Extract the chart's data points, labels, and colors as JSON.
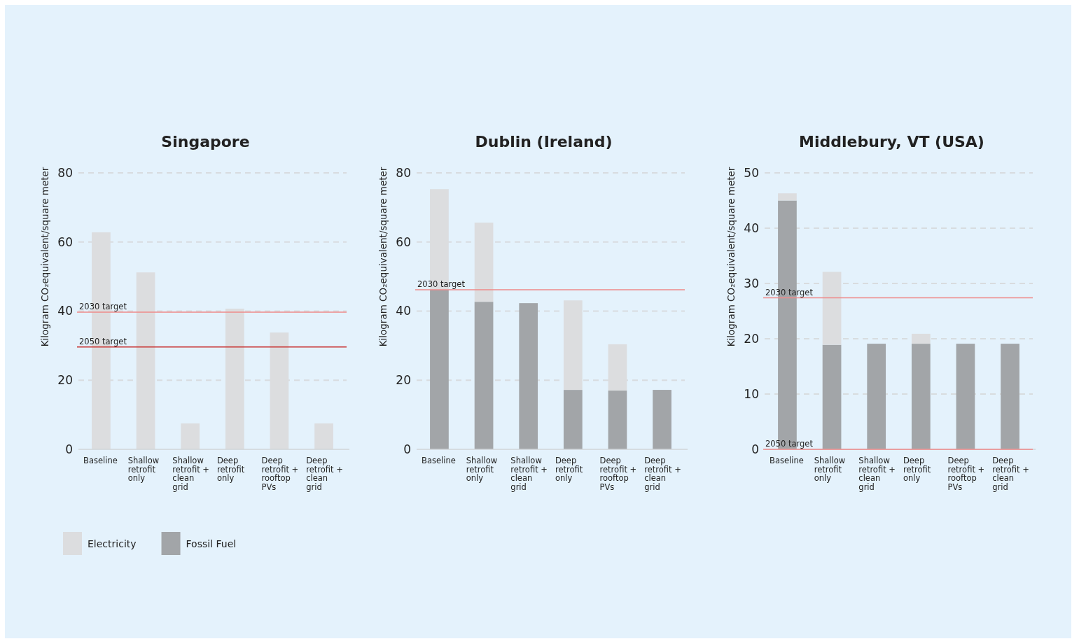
{
  "chart_data": [
    {
      "type": "bar",
      "title": "Singapore",
      "ylabel": "Kilogram CO₂equivalent/square meter",
      "stacked": true,
      "grid": "y",
      "legend": "bottom left",
      "categories": [
        "Baseline",
        "Shallow retrofit only",
        "Shallow retrofit + clean grid",
        "Deep retrofit only",
        "Deep retrofit + rooftop PVs",
        "Deep retrofit + clean grid"
      ],
      "ylim": [
        0,
        80
      ],
      "yticks": [
        0,
        20,
        40,
        60,
        80
      ],
      "series": [
        {
          "name": "Fossil Fuel",
          "color": "#a2a5a8",
          "values": [
            0,
            0,
            0,
            0,
            0,
            0
          ]
        },
        {
          "name": "Electricity",
          "color": "#dcdddf",
          "values": [
            62.8,
            51.2,
            7.5,
            40.7,
            33.8,
            7.5
          ]
        }
      ],
      "ref_lines": [
        {
          "axis": "y",
          "value": 39.7,
          "label": "2030 target",
          "color": "#ef8a8a"
        },
        {
          "axis": "y",
          "value": 29.6,
          "label": "2050 target",
          "color": "#c8302f"
        }
      ]
    },
    {
      "type": "bar",
      "title": "Dublin (Ireland)",
      "ylabel": "Kilogram CO₂equivalent/square meter",
      "stacked": true,
      "grid": "y",
      "categories": [
        "Baseline",
        "Shallow retrofit only",
        "Shallow retrofit + clean grid",
        "Deep retrofit only",
        "Deep retrofit + rooftop PVs",
        "Deep retrofit + clean grid"
      ],
      "ylim": [
        0,
        80
      ],
      "yticks": [
        0,
        20,
        40,
        60,
        80
      ],
      "series": [
        {
          "color": "#a2a5a8",
          "values": [
            46.2,
            42.7,
            42.3,
            17.2,
            17.0,
            17.2
          ]
        },
        {
          "color": "#dcdddf",
          "values": [
            29.1,
            22.9,
            0,
            25.9,
            13.4,
            0
          ]
        }
      ],
      "ref_lines": [
        {
          "axis": "y",
          "value": 46.2,
          "label": "2030 target",
          "color": "#ef8a8a"
        }
      ]
    },
    {
      "type": "bar",
      "title": "Middlebury, VT (USA)",
      "ylabel": "Kilogram CO₂equivalent/square meter",
      "stacked": true,
      "grid": "y",
      "categories": [
        "Baseline",
        "Shallow retrofit only",
        "Shallow retrofit + clean grid",
        "Deep retrofit only",
        "Deep retrofit + rooftop PVs",
        "Deep retrofit + clean grid"
      ],
      "ylim": [
        0,
        50
      ],
      "yticks": [
        0,
        10,
        20,
        30,
        40,
        50
      ],
      "series": [
        {
          "color": "#a2a5a8",
          "values": [
            45.0,
            18.9,
            19.1,
            19.1,
            19.1,
            19.1
          ]
        },
        {
          "color": "#dcdddf",
          "values": [
            1.3,
            13.2,
            0,
            1.8,
            0,
            0
          ]
        }
      ],
      "ref_lines": [
        {
          "axis": "y",
          "value": 27.4,
          "label": "2030 target",
          "color": "#ef8a8a"
        },
        {
          "axis": "y",
          "value": 0,
          "label": "2050 target",
          "color": "#ef8a8a"
        }
      ]
    }
  ]
}
